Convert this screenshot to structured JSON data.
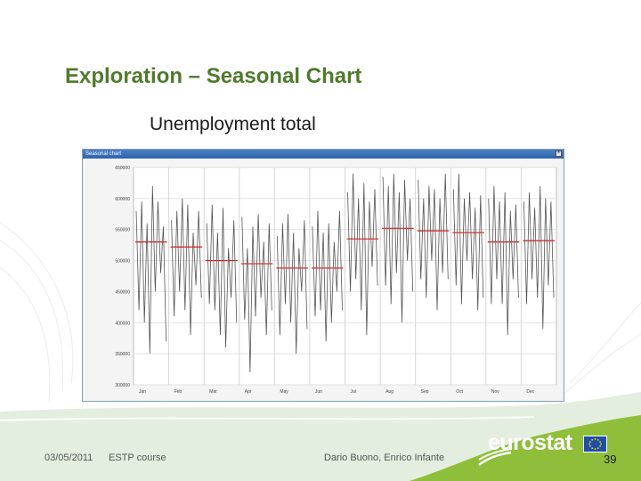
{
  "slide": {
    "title": "Exploration – Seasonal Chart",
    "chart_heading": "Unemployment total",
    "window_title": "Seasonal chart",
    "close_symbol": "×",
    "accent_color": "#4f7b2c",
    "band_color": "#8fbf3a"
  },
  "footer": {
    "date": "03/05/2011",
    "course": "ESTP course",
    "authors": "Dario Buono, Enrico Infante",
    "logo": "eurostat",
    "page_number": "39"
  },
  "chart_data": {
    "type": "line",
    "title": "",
    "xlabel": "",
    "ylabel": "",
    "categories": [
      "Jan",
      "Feb",
      "Mar",
      "Apr",
      "May",
      "Jun",
      "Jul",
      "Aug",
      "Sep",
      "Oct",
      "Nov",
      "Dec"
    ],
    "y_ticks": [
      "300000",
      "350000",
      "400000",
      "450000",
      "500000",
      "550000",
      "600000",
      "650000"
    ],
    "ylim": [
      300000,
      650000
    ],
    "grid": true,
    "line_color": "#555555",
    "mean_color": "#cc2222",
    "monthly_means": [
      530000,
      522000,
      500000,
      495000,
      488000,
      488000,
      535000,
      552000,
      548000,
      545000,
      530000,
      532000
    ],
    "subseries": [
      [
        580000,
        420000,
        595000,
        400000,
        560000,
        350000,
        620000,
        450000,
        595000,
        480000,
        555000,
        370000
      ],
      [
        565000,
        410000,
        580000,
        450000,
        600000,
        420000,
        590000,
        380000,
        545000,
        460000,
        580000,
        440000
      ],
      [
        560000,
        430000,
        590000,
        420000,
        545000,
        380000,
        585000,
        360000,
        520000,
        440000,
        565000,
        400000
      ],
      [
        570000,
        405000,
        520000,
        320000,
        555000,
        410000,
        575000,
        440000,
        530000,
        380000,
        560000,
        420000
      ],
      [
        540000,
        380000,
        560000,
        430000,
        575000,
        400000,
        545000,
        350000,
        520000,
        450000,
        565000,
        390000
      ],
      [
        555000,
        410000,
        580000,
        420000,
        545000,
        370000,
        560000,
        400000,
        530000,
        450000,
        580000,
        420000
      ],
      [
        610000,
        450000,
        640000,
        470000,
        600000,
        420000,
        625000,
        380000,
        595000,
        490000,
        615000,
        460000
      ],
      [
        635000,
        460000,
        620000,
        430000,
        640000,
        480000,
        610000,
        400000,
        630000,
        500000,
        600000,
        450000
      ],
      [
        630000,
        470000,
        600000,
        440000,
        620000,
        500000,
        615000,
        420000,
        600000,
        480000,
        640000,
        470000
      ],
      [
        615000,
        460000,
        640000,
        430000,
        600000,
        500000,
        610000,
        470000,
        585000,
        420000,
        605000,
        440000
      ],
      [
        600000,
        430000,
        620000,
        470000,
        595000,
        430000,
        610000,
        380000,
        580000,
        470000,
        590000,
        440000
      ],
      [
        595000,
        430000,
        610000,
        470000,
        585000,
        440000,
        620000,
        390000,
        600000,
        460000,
        595000,
        440000
      ]
    ]
  }
}
